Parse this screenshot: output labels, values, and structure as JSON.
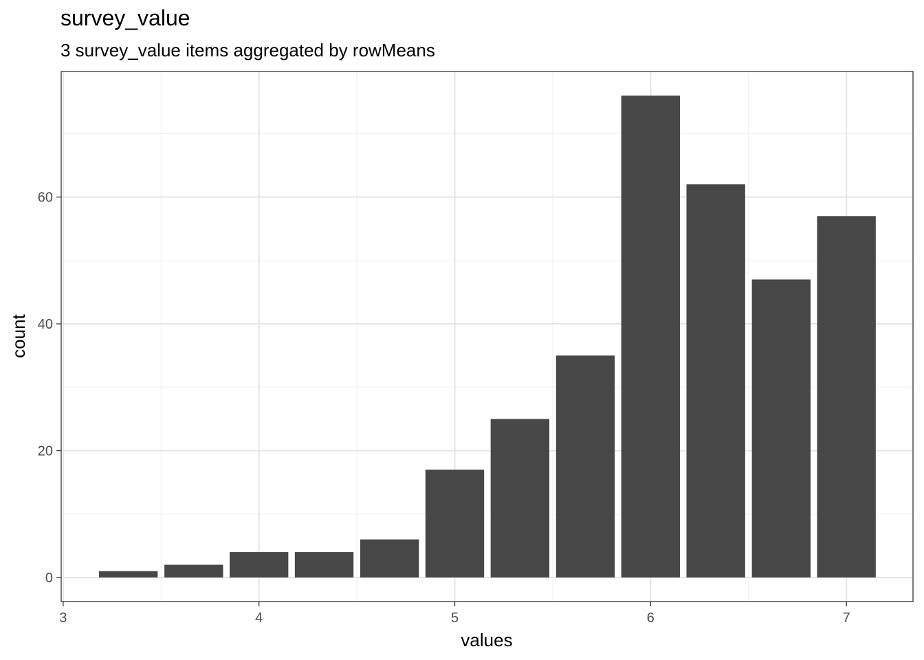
{
  "header": {
    "title": "survey_value",
    "subtitle": "3 survey_value items aggregated by rowMeans"
  },
  "chart_data": {
    "type": "bar",
    "xlabel": "values",
    "ylabel": "count",
    "x_ticks": [
      3,
      4,
      5,
      6,
      7
    ],
    "y_ticks": [
      0,
      20,
      40,
      60
    ],
    "xlim": [
      2.99,
      7.34
    ],
    "ylim": [
      -3.8,
      79.8
    ],
    "bin_width": 0.333,
    "bins": [
      {
        "x": 3.333,
        "count": 1
      },
      {
        "x": 3.667,
        "count": 2
      },
      {
        "x": 4.0,
        "count": 4
      },
      {
        "x": 4.333,
        "count": 4
      },
      {
        "x": 4.667,
        "count": 6
      },
      {
        "x": 5.0,
        "count": 17
      },
      {
        "x": 5.333,
        "count": 25
      },
      {
        "x": 5.667,
        "count": 35
      },
      {
        "x": 6.0,
        "count": 76
      },
      {
        "x": 6.333,
        "count": 62
      },
      {
        "x": 6.667,
        "count": 47
      },
      {
        "x": 7.0,
        "count": 57
      }
    ],
    "bar_color": "#474747",
    "grid": true,
    "legend": "none"
  }
}
